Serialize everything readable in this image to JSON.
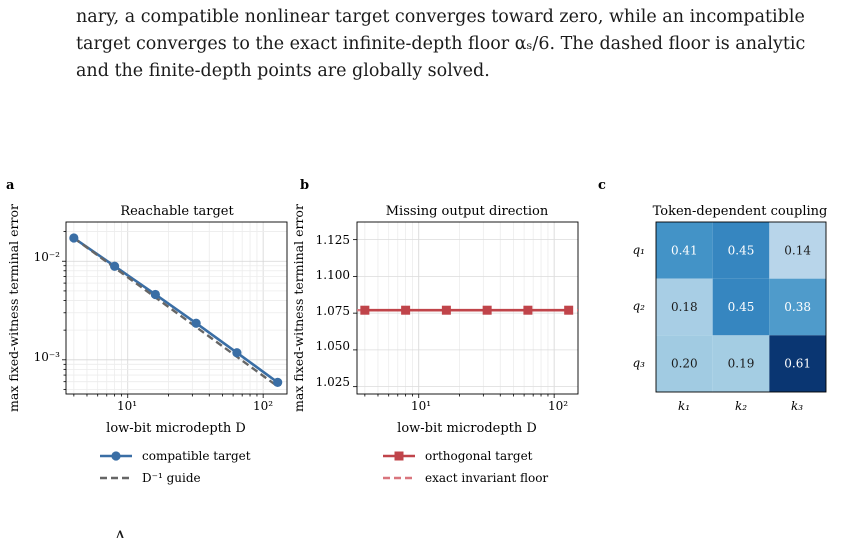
{
  "caption": {
    "lines": [
      "nary, a compatible nonlinear target converges toward zero, while an incompatible",
      "target converges to the exact infinite-depth floor αₛ/6. The dashed floor is analytic",
      "and the finite-depth points are globally solved."
    ]
  },
  "panels": {
    "a": {
      "letter": "a",
      "title": "Reachable target",
      "ylabel": "max fixed-witness terminal error",
      "xlabel": "low-bit microdepth D",
      "ytick_labels": [
        "10⁻²",
        "10⁻³"
      ],
      "xtick_labels": [
        "10¹",
        "10²"
      ],
      "legend": [
        "compatible target",
        "D⁻¹ guide"
      ]
    },
    "b": {
      "letter": "b",
      "title": "Missing output direction",
      "ylabel": "max fixed-witness terminal error",
      "xlabel": "low-bit microdepth D",
      "ytick_labels": [
        "1.025",
        "1.050",
        "1.075",
        "1.100",
        "1.125"
      ],
      "xtick_labels": [
        "10¹",
        "10²"
      ],
      "legend": [
        "orthogonal target",
        "exact invariant floor"
      ]
    },
    "c": {
      "letter": "c",
      "title": "Token-dependent coupling",
      "row_labels": [
        "q₁",
        "q₂",
        "q₃"
      ],
      "col_labels": [
        "k₁",
        "k₂",
        "k₃"
      ]
    }
  },
  "colors": {
    "compatible": "#3a6ea5",
    "guide": "#666666",
    "orthogonal": "#c0444a",
    "floor": "#d9757d"
  },
  "chart_data": [
    {
      "type": "line",
      "title": "Reachable target",
      "xlabel": "low-bit microdepth D",
      "ylabel": "max fixed-witness terminal error",
      "xscale": "log",
      "yscale": "log",
      "xlim": [
        3.5,
        150
      ],
      "ylim": [
        0.00045,
        0.025
      ],
      "grid": true,
      "legend_position": "below",
      "series": [
        {
          "name": "compatible target",
          "style": "solid-circle",
          "x": [
            4,
            8,
            16,
            32,
            64,
            128
          ],
          "y": [
            0.0172,
            0.0089,
            0.0046,
            0.00235,
            0.00118,
            0.00059
          ]
        },
        {
          "name": "D⁻¹ guide",
          "style": "dashed",
          "x": [
            4,
            128
          ],
          "y": [
            0.0172,
            0.000537
          ]
        }
      ]
    },
    {
      "type": "line",
      "title": "Missing output direction",
      "xlabel": "low-bit microdepth D",
      "ylabel": "max fixed-witness terminal error",
      "xscale": "log",
      "xlim": [
        3.5,
        150
      ],
      "ylim": [
        1.02,
        1.137
      ],
      "grid": true,
      "legend_position": "below",
      "series": [
        {
          "name": "orthogonal target",
          "style": "solid-square",
          "x": [
            4,
            8,
            16,
            32,
            64,
            128
          ],
          "y": [
            1.077,
            1.077,
            1.077,
            1.077,
            1.077,
            1.077
          ]
        },
        {
          "name": "exact invariant floor",
          "style": "dashed",
          "x": [
            3.5,
            150
          ],
          "y": [
            1.077,
            1.077
          ]
        }
      ]
    },
    {
      "type": "heatmap",
      "title": "Token-dependent coupling",
      "rows": [
        "q₁",
        "q₂",
        "q₃"
      ],
      "cols": [
        "k₁",
        "k₂",
        "k₃"
      ],
      "values": [
        [
          0.41,
          0.45,
          0.14
        ],
        [
          0.18,
          0.45,
          0.38
        ],
        [
          0.2,
          0.19,
          0.61
        ]
      ],
      "value_labels": [
        [
          "0.41",
          "0.45",
          "0.14"
        ],
        [
          "0.18",
          "0.45",
          "0.38"
        ],
        [
          "0.20",
          "0.19",
          "0.61"
        ]
      ],
      "colormap": "Blues"
    }
  ]
}
